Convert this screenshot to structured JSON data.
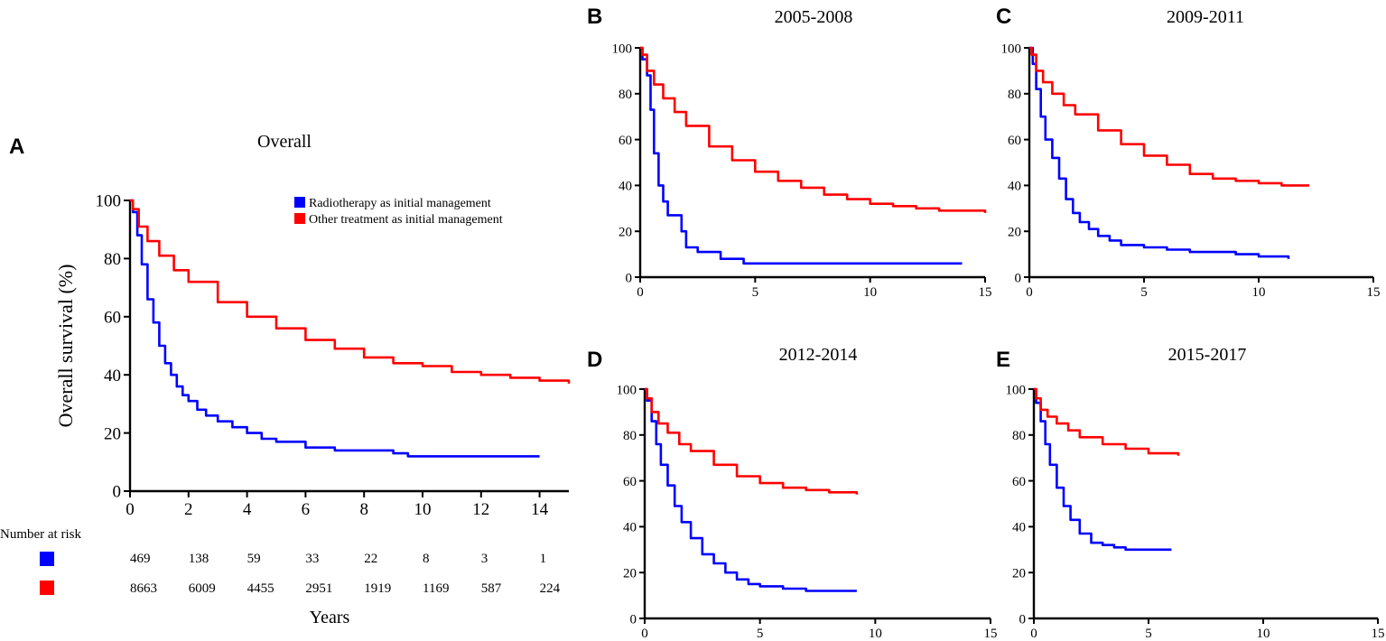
{
  "colors": {
    "radiotherapy": "#0000ff",
    "other": "#ff0000"
  },
  "chart_data": [
    {
      "panel": "A",
      "type": "line",
      "title": "Overall",
      "xlabel": "Years",
      "ylabel": "Overall survival  (%)",
      "xlim": [
        0,
        15
      ],
      "ylim": [
        0,
        100
      ],
      "xticks": [
        "0",
        "2",
        "4",
        "6",
        "8",
        "10",
        "12",
        "14"
      ],
      "yticks": [
        "0",
        "20",
        "40",
        "60",
        "80",
        "100"
      ],
      "legend": [
        {
          "label": "Radiotherapy as initial management"
        },
        {
          "label": "Other treatment as initial management"
        }
      ],
      "series": [
        {
          "name": "Radiotherapy as initial management",
          "x": [
            0,
            0.1,
            0.25,
            0.4,
            0.6,
            0.8,
            1.0,
            1.2,
            1.4,
            1.6,
            1.8,
            2.0,
            2.3,
            2.6,
            3.0,
            3.5,
            4.0,
            4.5,
            5.0,
            6.0,
            7.0,
            8.0,
            9.0,
            9.5,
            10.0,
            12.0,
            14.0
          ],
          "y": [
            100,
            96,
            88,
            78,
            66,
            58,
            50,
            44,
            40,
            36,
            33,
            31,
            28,
            26,
            24,
            22,
            20,
            18,
            17,
            15,
            14,
            14,
            13,
            12,
            12,
            12,
            12
          ]
        },
        {
          "name": "Other treatment as initial management",
          "x": [
            0,
            0.1,
            0.3,
            0.6,
            1.0,
            1.5,
            2.0,
            3.0,
            4.0,
            5.0,
            6.0,
            7.0,
            8.0,
            9.0,
            10.0,
            11.0,
            12.0,
            13.0,
            14.0,
            15.0
          ],
          "y": [
            100,
            97,
            91,
            86,
            81,
            76,
            72,
            65,
            60,
            56,
            52,
            49,
            46,
            44,
            43,
            41,
            40,
            39,
            38,
            37
          ]
        }
      ],
      "risk_table": {
        "title": "Number at risk",
        "columns": [
          "0",
          "2",
          "4",
          "6",
          "8",
          "10",
          "12",
          "14"
        ],
        "rows": [
          {
            "group": "Radiotherapy as initial management",
            "values": [
              "469",
              "138",
              "59",
              "33",
              "22",
              "8",
              "3",
              "1"
            ]
          },
          {
            "group": "Other treatment as initial management",
            "values": [
              "8663",
              "6009",
              "4455",
              "2951",
              "1919",
              "1169",
              "587",
              "224"
            ]
          }
        ]
      }
    },
    {
      "panel": "B",
      "type": "line",
      "title": "2005-2008",
      "xlim": [
        0,
        15
      ],
      "ylim": [
        0,
        100
      ],
      "xticks": [
        "0",
        "5",
        "10",
        "15"
      ],
      "yticks": [
        "0",
        "20",
        "40",
        "60",
        "80",
        "100"
      ],
      "series": [
        {
          "name": "Radiotherapy as initial management",
          "x": [
            0,
            0.1,
            0.3,
            0.45,
            0.6,
            0.8,
            1.0,
            1.2,
            1.5,
            1.8,
            2.0,
            2.5,
            3.0,
            3.5,
            4.5,
            5.0,
            10.0,
            14.0
          ],
          "y": [
            100,
            95,
            88,
            73,
            54,
            40,
            33,
            27,
            27,
            20,
            13,
            11,
            11,
            8,
            6,
            6,
            6,
            6
          ]
        },
        {
          "name": "Other treatment as initial management",
          "x": [
            0,
            0.1,
            0.3,
            0.6,
            1.0,
            1.5,
            2.0,
            3.0,
            4.0,
            5.0,
            6.0,
            7.0,
            8.0,
            9.0,
            10.0,
            11.0,
            12.0,
            13.0,
            14.0,
            15.0
          ],
          "y": [
            100,
            97,
            90,
            84,
            78,
            72,
            66,
            57,
            51,
            46,
            42,
            39,
            36,
            34,
            32,
            31,
            30,
            29,
            29,
            28
          ]
        }
      ]
    },
    {
      "panel": "C",
      "type": "line",
      "title": "2009-2011",
      "xlim": [
        0,
        15
      ],
      "ylim": [
        0,
        100
      ],
      "xticks": [
        "0",
        "5",
        "10",
        "15"
      ],
      "yticks": [
        "0",
        "20",
        "40",
        "60",
        "80",
        "100"
      ],
      "series": [
        {
          "name": "Radiotherapy as initial management",
          "x": [
            0,
            0.15,
            0.3,
            0.5,
            0.7,
            1.0,
            1.3,
            1.6,
            1.9,
            2.2,
            2.6,
            3.0,
            3.5,
            4.0,
            5.0,
            6.0,
            7.0,
            8.0,
            9.0,
            10.0,
            11.3
          ],
          "y": [
            100,
            93,
            82,
            70,
            60,
            52,
            43,
            34,
            28,
            24,
            21,
            18,
            16,
            14,
            13,
            12,
            11,
            11,
            10,
            9,
            8
          ]
        },
        {
          "name": "Other treatment as initial management",
          "x": [
            0,
            0.1,
            0.3,
            0.6,
            1.0,
            1.5,
            2.0,
            3.0,
            4.0,
            5.0,
            6.0,
            7.0,
            8.0,
            9.0,
            10.0,
            11.0,
            12.2
          ],
          "y": [
            100,
            97,
            90,
            85,
            80,
            75,
            71,
            64,
            58,
            53,
            49,
            45,
            43,
            42,
            41,
            40,
            40
          ]
        }
      ]
    },
    {
      "panel": "D",
      "type": "line",
      "title": "2012-2014",
      "xlim": [
        0,
        15
      ],
      "ylim": [
        0,
        100
      ],
      "xticks": [
        "0",
        "5",
        "10",
        "15"
      ],
      "yticks": [
        "0",
        "20",
        "40",
        "60",
        "80",
        "100"
      ],
      "series": [
        {
          "name": "Radiotherapy as initial management",
          "x": [
            0,
            0.1,
            0.3,
            0.5,
            0.7,
            1.0,
            1.3,
            1.6,
            2.0,
            2.5,
            3.0,
            3.5,
            4.0,
            4.5,
            5.0,
            6.0,
            7.0,
            8.0,
            9.2
          ],
          "y": [
            100,
            95,
            86,
            76,
            67,
            58,
            49,
            42,
            35,
            28,
            24,
            20,
            17,
            15,
            14,
            13,
            12,
            12,
            12
          ]
        },
        {
          "name": "Other treatment as initial management",
          "x": [
            0,
            0.1,
            0.3,
            0.6,
            1.0,
            1.5,
            2.0,
            3.0,
            4.0,
            5.0,
            6.0,
            7.0,
            8.0,
            9.2
          ],
          "y": [
            100,
            96,
            90,
            85,
            81,
            76,
            73,
            67,
            62,
            59,
            57,
            56,
            55,
            54
          ]
        }
      ]
    },
    {
      "panel": "E",
      "type": "line",
      "title": "2015-2017",
      "xlim": [
        0,
        15
      ],
      "ylim": [
        0,
        100
      ],
      "xticks": [
        "0",
        "5",
        "10",
        "15"
      ],
      "yticks": [
        "0",
        "20",
        "40",
        "60",
        "80",
        "100"
      ],
      "series": [
        {
          "name": "Radiotherapy as initial management",
          "x": [
            0,
            0.1,
            0.3,
            0.5,
            0.7,
            1.0,
            1.3,
            1.6,
            2.0,
            2.5,
            3.0,
            3.5,
            4.0,
            5.0,
            6.0
          ],
          "y": [
            100,
            94,
            86,
            76,
            67,
            57,
            49,
            43,
            37,
            33,
            32,
            31,
            30,
            30,
            30
          ]
        },
        {
          "name": "Other treatment as initial management",
          "x": [
            0,
            0.1,
            0.3,
            0.6,
            1.0,
            1.5,
            2.0,
            3.0,
            4.0,
            5.0,
            6.3
          ],
          "y": [
            100,
            96,
            91,
            88,
            85,
            82,
            79,
            76,
            74,
            72,
            71
          ]
        }
      ]
    }
  ]
}
